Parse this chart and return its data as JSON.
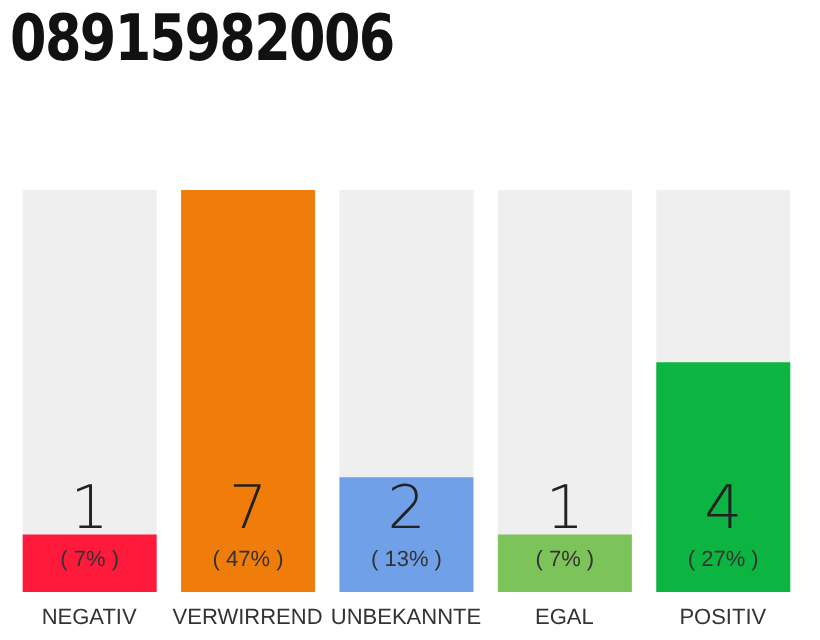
{
  "chart_data": {
    "type": "bar",
    "title": "08915982006",
    "categories": [
      "NEGATIV",
      "VERWIRREND",
      "UNBEKANNTE",
      "EGAL",
      "POSITIV"
    ],
    "values": [
      1,
      7,
      2,
      1,
      4
    ],
    "colors": [
      "#ff1a3c",
      "#f07d0a",
      "#6fa0e8",
      "#7cc35a",
      "#0cb442"
    ],
    "data_labels": true,
    "annotations": [
      "( 7% )",
      "( 47% )",
      "( 13% )",
      "( 7% )",
      "( 27% )"
    ]
  }
}
